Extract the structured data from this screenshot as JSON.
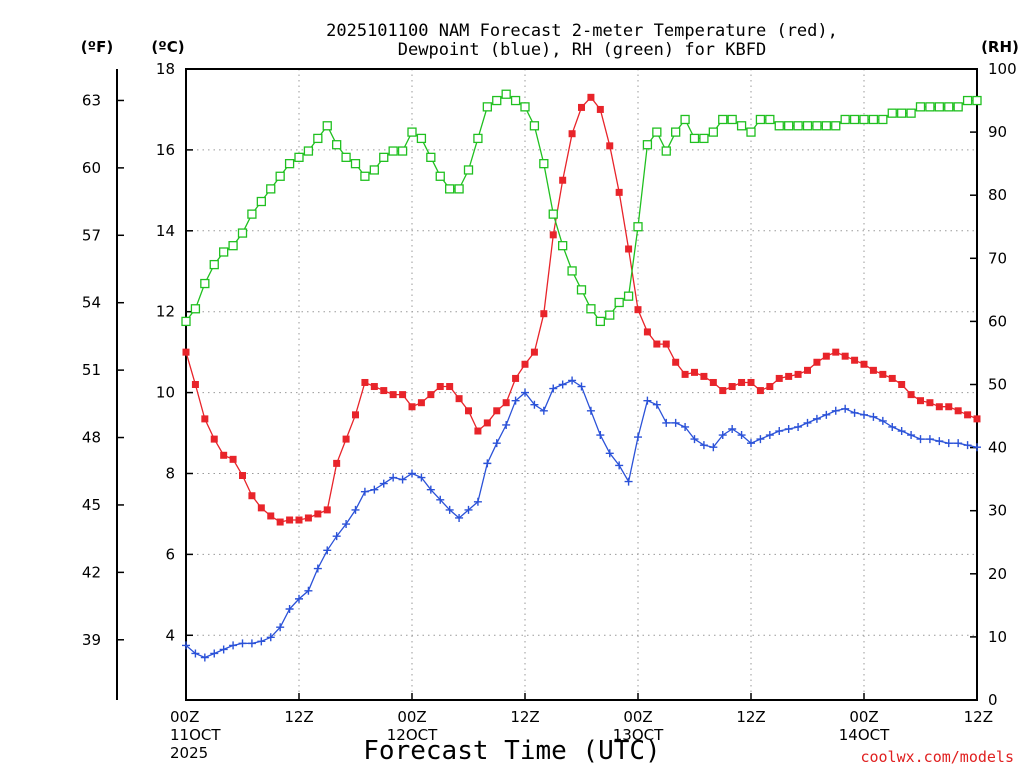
{
  "chart_data": {
    "type": "line",
    "title_lines": [
      "2025101100 NAM Forecast 2-meter Temperature (red),",
      "Dewpoint (blue), RH (green) for KBFD"
    ],
    "units": {
      "fahrenheit": "(ºF)",
      "celsius": "(ºC)",
      "rh": "(RH)"
    },
    "xlabel": "Forecast Time (UTC)",
    "credit": "coolwx.com/models",
    "x_range": [
      0,
      84
    ],
    "y_range_c": [
      2.4,
      18
    ],
    "y_range_rh": [
      0,
      100
    ],
    "celsius_ticks": [
      "4",
      "6",
      "8",
      "10",
      "12",
      "14",
      "16",
      "18"
    ],
    "fahrenheit_ticks": [
      "39",
      "42",
      "45",
      "48",
      "51",
      "54",
      "57",
      "60",
      "63"
    ],
    "rh_ticks": [
      "0",
      "10",
      "20",
      "30",
      "40",
      "50",
      "60",
      "70",
      "80",
      "90",
      "100"
    ],
    "x_ticks": [
      {
        "hour": 0,
        "lines": [
          "00Z",
          "11OCT",
          "2025"
        ]
      },
      {
        "hour": 12,
        "lines": [
          "12Z"
        ]
      },
      {
        "hour": 24,
        "lines": [
          "00Z",
          "12OCT"
        ]
      },
      {
        "hour": 36,
        "lines": [
          "12Z"
        ]
      },
      {
        "hour": 48,
        "lines": [
          "00Z",
          "13OCT"
        ]
      },
      {
        "hour": 60,
        "lines": [
          "12Z"
        ]
      },
      {
        "hour": 72,
        "lines": [
          "00Z",
          "14OCT"
        ]
      },
      {
        "hour": 84,
        "lines": [
          "12Z"
        ]
      }
    ],
    "grid": true,
    "series": [
      {
        "key": "temperature",
        "axis": "celsius",
        "color": "#e8242a",
        "marker": "filled-square",
        "values": [
          11.0,
          10.2,
          9.35,
          8.85,
          8.45,
          8.35,
          7.95,
          7.45,
          7.15,
          6.95,
          6.8,
          6.85,
          6.85,
          6.9,
          7.0,
          7.1,
          8.25,
          8.85,
          9.45,
          10.25,
          10.15,
          10.05,
          9.95,
          9.95,
          9.65,
          9.75,
          9.95,
          10.15,
          10.15,
          9.85,
          9.55,
          9.05,
          9.25,
          9.55,
          9.75,
          10.35,
          10.7,
          11.0,
          11.95,
          13.9,
          15.25,
          16.4,
          17.05,
          17.3,
          17.0,
          16.1,
          14.95,
          13.55,
          12.05,
          11.5,
          11.2,
          11.2,
          10.75,
          10.45,
          10.5,
          10.4,
          10.25,
          10.05,
          10.15,
          10.25,
          10.25,
          10.05,
          10.15,
          10.35,
          10.4,
          10.45,
          10.55,
          10.75,
          10.9,
          11.0,
          10.9,
          10.8,
          10.7,
          10.55,
          10.45,
          10.35,
          10.2,
          9.95,
          9.8,
          9.75,
          9.65,
          9.65,
          9.55,
          9.45,
          9.35
        ]
      },
      {
        "key": "dewpoint",
        "axis": "celsius",
        "color": "#2b52d8",
        "marker": "plus",
        "values": [
          3.75,
          3.55,
          3.45,
          3.55,
          3.65,
          3.75,
          3.8,
          3.8,
          3.85,
          3.95,
          4.2,
          4.65,
          4.9,
          5.1,
          5.65,
          6.1,
          6.45,
          6.75,
          7.1,
          7.55,
          7.6,
          7.75,
          7.9,
          7.85,
          8.0,
          7.9,
          7.6,
          7.35,
          7.1,
          6.9,
          7.1,
          7.3,
          8.25,
          8.75,
          9.2,
          9.8,
          10.0,
          9.7,
          9.55,
          10.1,
          10.2,
          10.3,
          10.15,
          9.55,
          8.95,
          8.5,
          8.2,
          7.8,
          8.9,
          9.8,
          9.7,
          9.25,
          9.25,
          9.15,
          8.85,
          8.7,
          8.65,
          8.95,
          9.1,
          8.95,
          8.75,
          8.85,
          8.95,
          9.05,
          9.1,
          9.15,
          9.25,
          9.35,
          9.45,
          9.55,
          9.6,
          9.5,
          9.45,
          9.4,
          9.3,
          9.15,
          9.05,
          8.95,
          8.85,
          8.85,
          8.8,
          8.75,
          8.75,
          8.7,
          8.65
        ]
      },
      {
        "key": "rh",
        "axis": "rh",
        "color": "#20c020",
        "marker": "open-square",
        "values": [
          60,
          62,
          66,
          69,
          71,
          72,
          74,
          77,
          79,
          81,
          83,
          85,
          86,
          87,
          89,
          91,
          88,
          86,
          85,
          83,
          84,
          86,
          87,
          87,
          90,
          89,
          86,
          83,
          81,
          81,
          84,
          89,
          94,
          95,
          96,
          95,
          94,
          91,
          85,
          77,
          72,
          68,
          65,
          62,
          60,
          61,
          63,
          64,
          75,
          88,
          90,
          87,
          90,
          92,
          89,
          89,
          90,
          92,
          92,
          91,
          90,
          92,
          92,
          91,
          91,
          91,
          91,
          91,
          91,
          91,
          92,
          92,
          92,
          92,
          92,
          93,
          93,
          93,
          94,
          94,
          94,
          94,
          94,
          95,
          95
        ]
      }
    ]
  }
}
